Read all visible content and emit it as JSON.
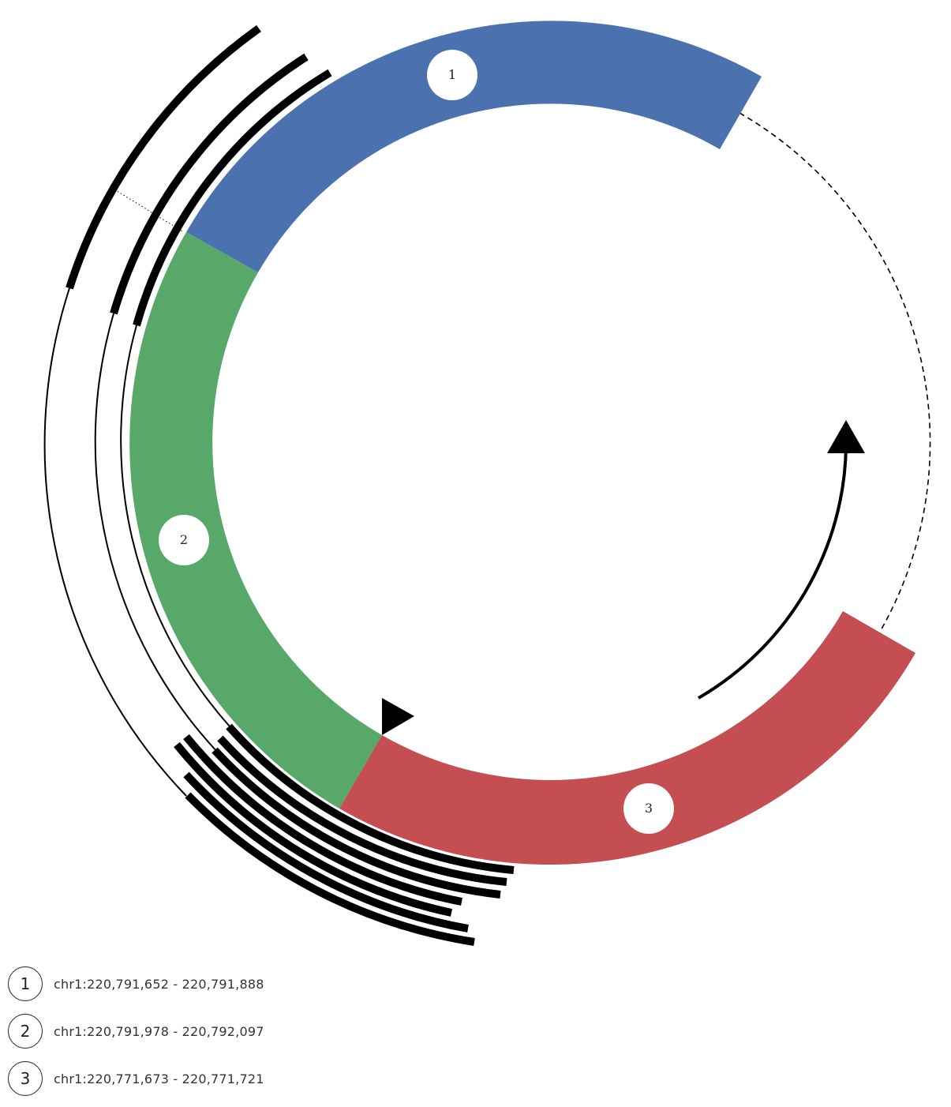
{
  "diagram": {
    "segments": [
      {
        "number": "1",
        "region": "chr1:220,791,652 - 220,791,888",
        "color": "#4b72ae"
      },
      {
        "number": "2",
        "region": "chr1:220,791,978 - 220,792,097",
        "color": "#57a869"
      },
      {
        "number": "3",
        "region": "chr1:220,771,673 - 220,771,721",
        "color": "#c44e51"
      }
    ],
    "read_color": "#000000",
    "gap_line_style": "dashed",
    "strand_arrow": "clockwise"
  }
}
